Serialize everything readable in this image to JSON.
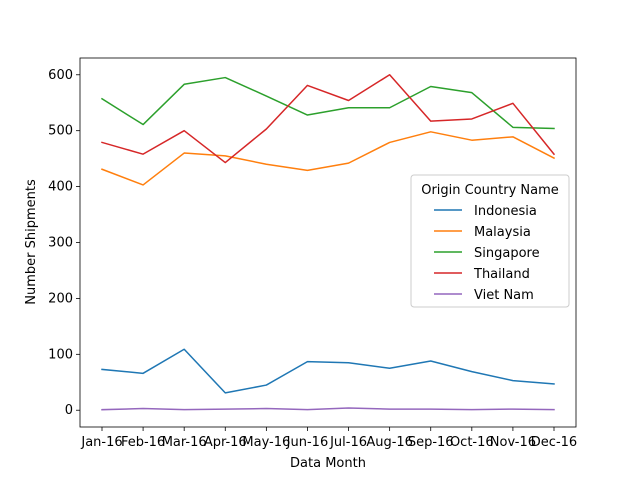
{
  "chart_data": {
    "type": "line",
    "title": "",
    "xlabel": "Data Month",
    "ylabel": "Number Shipments",
    "categories": [
      "Jan-16",
      "Feb-16",
      "Mar-16",
      "Apr-16",
      "May-16",
      "Jun-16",
      "Jul-16",
      "Aug-16",
      "Sep-16",
      "Oct-16",
      "Nov-16",
      "Dec-16"
    ],
    "ylim": [
      -30,
      630
    ],
    "yticks": [
      0,
      100,
      200,
      300,
      400,
      500,
      600
    ],
    "grid": false,
    "legend": {
      "title": "Origin Country Name",
      "placement": "center-right"
    },
    "series": [
      {
        "name": "Indonesia",
        "color": "#1f77b4",
        "values": [
          73,
          66,
          109,
          31,
          45,
          87,
          85,
          75,
          88,
          69,
          53,
          47
        ]
      },
      {
        "name": "Malaysia",
        "color": "#ff7f0e",
        "values": [
          431,
          403,
          460,
          455,
          440,
          429,
          442,
          479,
          498,
          483,
          489,
          451
        ]
      },
      {
        "name": "Singapore",
        "color": "#2ca02c",
        "values": [
          557,
          511,
          583,
          595,
          562,
          528,
          541,
          541,
          579,
          568,
          506,
          504
        ]
      },
      {
        "name": "Thailand",
        "color": "#d62728",
        "values": [
          479,
          458,
          500,
          443,
          503,
          581,
          554,
          600,
          517,
          521,
          549,
          458
        ]
      },
      {
        "name": "Viet Nam",
        "color": "#9467bd",
        "values": [
          1,
          3,
          1,
          2,
          3,
          1,
          4,
          2,
          2,
          1,
          2,
          1
        ]
      }
    ]
  }
}
